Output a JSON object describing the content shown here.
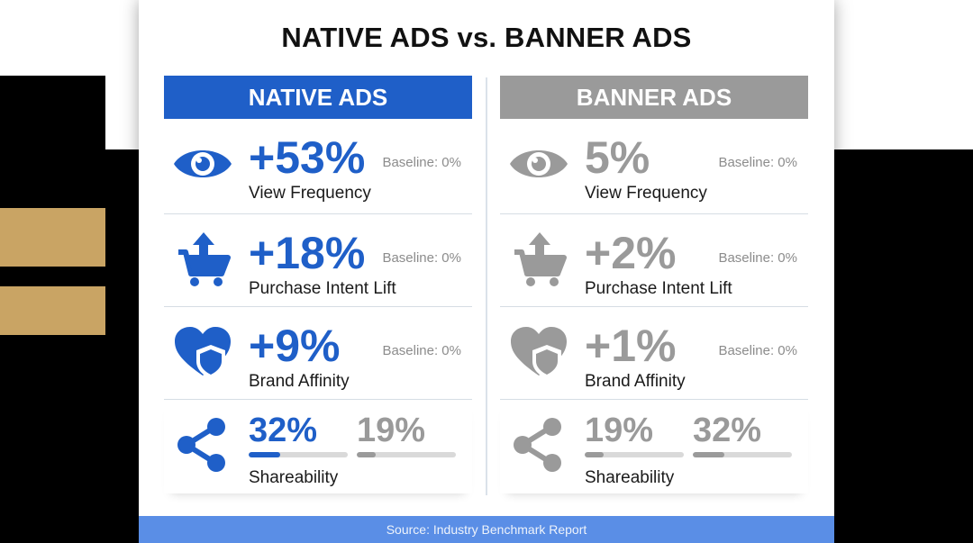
{
  "title": "NATIVE ADS vs. BANNER ADS",
  "colors": {
    "native": "#1f5fc8",
    "banner": "#9a9a9a",
    "gold": "#c9a464",
    "footer": "#5a8ee6"
  },
  "native": {
    "header": "NATIVE ADS",
    "rows": [
      {
        "icon": "eye-icon",
        "value": "+53%",
        "baseline": "Baseline: 0%",
        "label": "View Frequency"
      },
      {
        "icon": "cart-upload-icon",
        "value": "+18%",
        "baseline": "Baseline: 0%",
        "label": "Purchase Intent Lift"
      },
      {
        "icon": "heart-shield-icon",
        "value": "+9%",
        "baseline": "Baseline: 0%",
        "label": "Brand Affinity"
      }
    ],
    "share": {
      "icon": "share-icon",
      "a": "32%",
      "b": "19%",
      "a_fill": 0.32,
      "b_fill": 0.19,
      "label": "Shareability"
    }
  },
  "banner": {
    "header": "BANNER ADS",
    "rows": [
      {
        "icon": "eye-icon",
        "value": "5%",
        "baseline": "Baseline: 0%",
        "label": "View Frequency"
      },
      {
        "icon": "cart-upload-icon",
        "value": "+2%",
        "baseline": "Baseline: 0%",
        "label": "Purchase Intent Lift"
      },
      {
        "icon": "heart-shield-icon",
        "value": "+1%",
        "baseline": "Baseline: 0%",
        "label": "Brand Affinity"
      }
    ],
    "share": {
      "icon": "share-icon",
      "a": "19%",
      "b": "32%",
      "a_fill": 0.19,
      "b_fill": 0.32,
      "label": "Shareability"
    }
  },
  "footer": "Source: Industry Benchmark Report"
}
